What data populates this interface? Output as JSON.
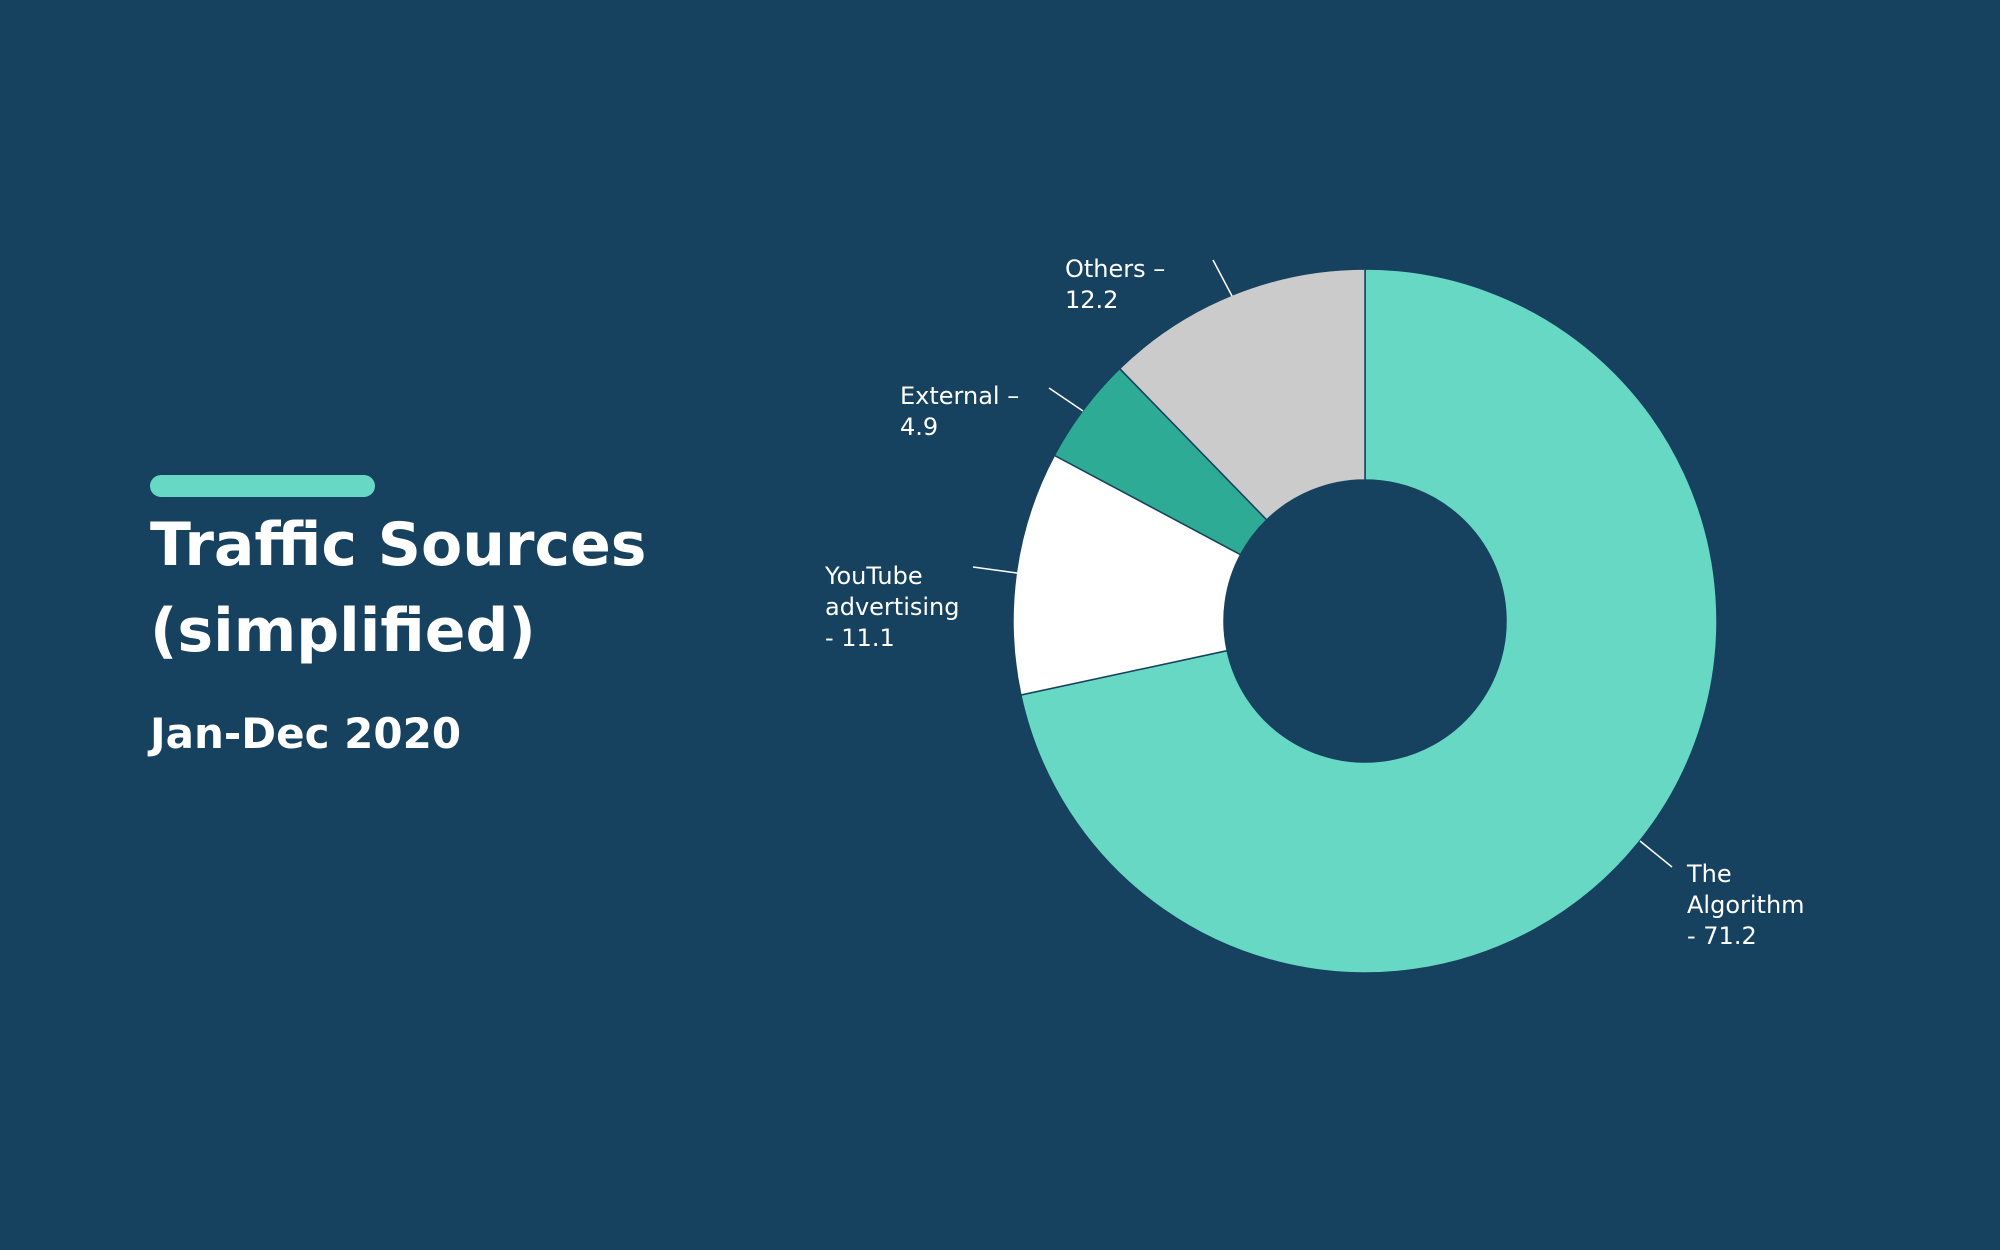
{
  "header": {
    "title": "Traffic Sources (simplified)",
    "subtitle": "Jan-Dec 2020"
  },
  "colors": {
    "background": "#17425f",
    "accent": "#66d8c4"
  },
  "chart_data": {
    "type": "pie",
    "variant": "donut",
    "title": "Traffic Sources (simplified)",
    "subtitle": "Jan-Dec 2020",
    "direction": "clockwise",
    "start_angle_deg": 0,
    "slices": [
      {
        "name": "The Algorithm",
        "value": 71.2,
        "color": "#66d8c4",
        "label_lines": [
          "The",
          "Algorithm",
          "- 71.2"
        ]
      },
      {
        "name": "YouTube advertising",
        "value": 11.1,
        "color": "#ffffff",
        "label_lines": [
          "YouTube",
          "advertising",
          "- 11.1"
        ]
      },
      {
        "name": "External",
        "value": 4.9,
        "color": "#2eab95",
        "label_lines": [
          "External –",
          "4.9"
        ]
      },
      {
        "name": "Others",
        "value": 12.2,
        "color": "#cbcbcb",
        "label_lines": [
          "Others –",
          "12.2"
        ]
      }
    ],
    "legend": "none"
  }
}
